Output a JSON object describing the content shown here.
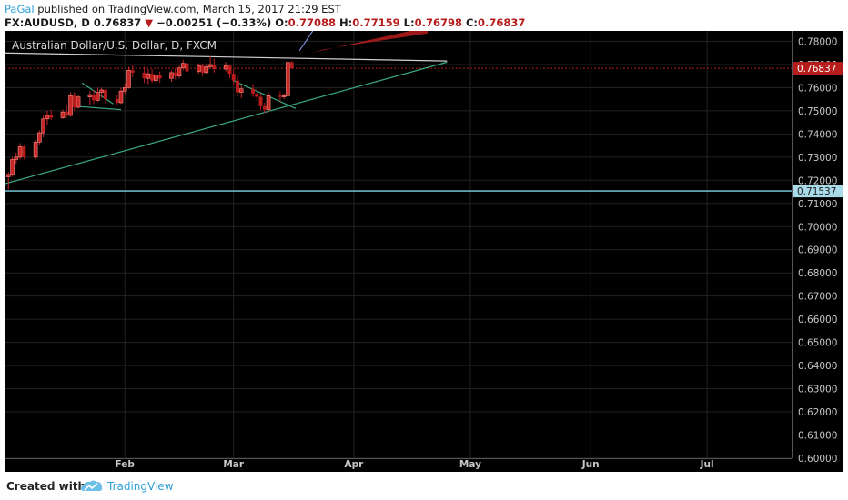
{
  "header": {
    "author": "PaGal",
    "published_text": "published on TradingView.com, March 15, 2017 21:29 EST",
    "symbol": "FX:AUDUSD, D",
    "last": "0.76837",
    "change_arrow": "▼",
    "change": "−0.00251 (−0.33%)",
    "open_label": "O:",
    "open": "0.77088",
    "high_label": "H:",
    "high": "0.77159",
    "low_label": "L:",
    "low": "0.76798",
    "close_label": "C:",
    "close": "0.76837"
  },
  "footer": {
    "created_with": "Created with",
    "brand": "TradingView",
    "logo_icon": "tradingview-cloud-icon"
  },
  "colors": {
    "background": "#000000",
    "grid": "#222222",
    "up_candle": "#c62828",
    "down_candle": "#b71c1c",
    "trend_up": "#3aa881",
    "horizontal_line": "#7fd3e5",
    "resistance": "#d0d0d0",
    "price_tag": "#b71c1c",
    "level_tag": "#a9dce8",
    "axis_text": "#c8c8c8",
    "link_blue": "#2e9fd8"
  },
  "chart_data": {
    "type": "candlestick",
    "title": "Australian Dollar/U.S. Dollar, D, FXCM",
    "y_range": [
      0.6,
      0.7845
    ],
    "y_ticks": [
      "0.78000",
      "0.77000",
      "0.76000",
      "0.75000",
      "0.74000",
      "0.73000",
      "0.72000",
      "0.71000",
      "0.70000",
      "0.69000",
      "0.68000",
      "0.67000",
      "0.66000",
      "0.65000",
      "0.64000",
      "0.63000",
      "0.62000",
      "0.61000",
      "0.60000"
    ],
    "x_ticks": [
      {
        "label": "Feb",
        "date": "2017-02-01"
      },
      {
        "label": "Mar",
        "date": "2017-03-01"
      },
      {
        "label": "Apr",
        "date": "2017-04-01"
      },
      {
        "label": "May",
        "date": "2017-05-01"
      },
      {
        "label": "Jun",
        "date": "2017-06-01"
      },
      {
        "label": "Jul",
        "date": "2017-07-01"
      }
    ],
    "x_range": [
      "2017-01-01",
      "2017-07-23"
    ],
    "grid": true,
    "last_price": "0.76837",
    "horizontal_level": "0.71537",
    "candles": [
      {
        "date": "2017-01-02",
        "o": 0.7215,
        "h": 0.7235,
        "l": 0.716,
        "c": 0.7225
      },
      {
        "date": "2017-01-03",
        "o": 0.7225,
        "h": 0.73,
        "l": 0.7215,
        "c": 0.729
      },
      {
        "date": "2017-01-04",
        "o": 0.729,
        "h": 0.732,
        "l": 0.727,
        "c": 0.73
      },
      {
        "date": "2017-01-05",
        "o": 0.73,
        "h": 0.736,
        "l": 0.729,
        "c": 0.7345
      },
      {
        "date": "2017-01-06",
        "o": 0.7345,
        "h": 0.735,
        "l": 0.729,
        "c": 0.73
      },
      {
        "date": "2017-01-09",
        "o": 0.73,
        "h": 0.7375,
        "l": 0.729,
        "c": 0.7365
      },
      {
        "date": "2017-01-10",
        "o": 0.7365,
        "h": 0.7415,
        "l": 0.7355,
        "c": 0.7405
      },
      {
        "date": "2017-01-11",
        "o": 0.7405,
        "h": 0.748,
        "l": 0.7385,
        "c": 0.7465
      },
      {
        "date": "2017-01-12",
        "o": 0.7465,
        "h": 0.75,
        "l": 0.744,
        "c": 0.748
      },
      {
        "date": "2017-01-13",
        "o": 0.748,
        "h": 0.7505,
        "l": 0.746,
        "c": 0.747
      },
      {
        "date": "2017-01-16",
        "o": 0.747,
        "h": 0.7505,
        "l": 0.7465,
        "c": 0.7495
      },
      {
        "date": "2017-01-17",
        "o": 0.7495,
        "h": 0.7525,
        "l": 0.747,
        "c": 0.748
      },
      {
        "date": "2017-01-18",
        "o": 0.748,
        "h": 0.758,
        "l": 0.7475,
        "c": 0.7565
      },
      {
        "date": "2017-01-19",
        "o": 0.7565,
        "h": 0.758,
        "l": 0.75,
        "c": 0.7515
      },
      {
        "date": "2017-01-20",
        "o": 0.7515,
        "h": 0.757,
        "l": 0.751,
        "c": 0.756
      },
      {
        "date": "2017-01-23",
        "o": 0.756,
        "h": 0.7585,
        "l": 0.7525,
        "c": 0.757
      },
      {
        "date": "2017-01-24",
        "o": 0.757,
        "h": 0.759,
        "l": 0.753,
        "c": 0.7545
      },
      {
        "date": "2017-01-25",
        "o": 0.7545,
        "h": 0.76,
        "l": 0.754,
        "c": 0.758
      },
      {
        "date": "2017-01-26",
        "o": 0.758,
        "h": 0.76,
        "l": 0.7555,
        "c": 0.759
      },
      {
        "date": "2017-01-27",
        "o": 0.759,
        "h": 0.7595,
        "l": 0.753,
        "c": 0.755
      },
      {
        "date": "2017-01-30",
        "o": 0.755,
        "h": 0.757,
        "l": 0.7525,
        "c": 0.7535
      },
      {
        "date": "2017-01-31",
        "o": 0.7535,
        "h": 0.76,
        "l": 0.753,
        "c": 0.7585
      },
      {
        "date": "2017-02-01",
        "o": 0.7585,
        "h": 0.762,
        "l": 0.757,
        "c": 0.76
      },
      {
        "date": "2017-02-02",
        "o": 0.76,
        "h": 0.769,
        "l": 0.7595,
        "c": 0.7675
      },
      {
        "date": "2017-02-03",
        "o": 0.7675,
        "h": 0.77,
        "l": 0.7645,
        "c": 0.7665
      },
      {
        "date": "2017-02-06",
        "o": 0.7665,
        "h": 0.769,
        "l": 0.762,
        "c": 0.764
      },
      {
        "date": "2017-02-07",
        "o": 0.764,
        "h": 0.768,
        "l": 0.7615,
        "c": 0.766
      },
      {
        "date": "2017-02-08",
        "o": 0.766,
        "h": 0.768,
        "l": 0.762,
        "c": 0.763
      },
      {
        "date": "2017-02-09",
        "o": 0.763,
        "h": 0.7665,
        "l": 0.762,
        "c": 0.7655
      },
      {
        "date": "2017-02-10",
        "o": 0.7655,
        "h": 0.767,
        "l": 0.762,
        "c": 0.764
      },
      {
        "date": "2017-02-13",
        "o": 0.764,
        "h": 0.7675,
        "l": 0.7625,
        "c": 0.7665
      },
      {
        "date": "2017-02-14",
        "o": 0.7665,
        "h": 0.7685,
        "l": 0.7635,
        "c": 0.765
      },
      {
        "date": "2017-02-15",
        "o": 0.765,
        "h": 0.7695,
        "l": 0.764,
        "c": 0.7685
      },
      {
        "date": "2017-02-16",
        "o": 0.7685,
        "h": 0.772,
        "l": 0.7675,
        "c": 0.7705
      },
      {
        "date": "2017-02-17",
        "o": 0.7705,
        "h": 0.7715,
        "l": 0.766,
        "c": 0.767
      },
      {
        "date": "2017-02-20",
        "o": 0.767,
        "h": 0.7705,
        "l": 0.766,
        "c": 0.7695
      },
      {
        "date": "2017-02-21",
        "o": 0.7695,
        "h": 0.7705,
        "l": 0.765,
        "c": 0.7665
      },
      {
        "date": "2017-02-22",
        "o": 0.7665,
        "h": 0.7705,
        "l": 0.766,
        "c": 0.769
      },
      {
        "date": "2017-02-23",
        "o": 0.769,
        "h": 0.7735,
        "l": 0.768,
        "c": 0.77
      },
      {
        "date": "2017-02-24",
        "o": 0.77,
        "h": 0.7725,
        "l": 0.7665,
        "c": 0.768
      },
      {
        "date": "2017-02-27",
        "o": 0.768,
        "h": 0.771,
        "l": 0.767,
        "c": 0.7695
      },
      {
        "date": "2017-02-28",
        "o": 0.7695,
        "h": 0.77,
        "l": 0.764,
        "c": 0.766
      },
      {
        "date": "2017-03-01",
        "o": 0.766,
        "h": 0.768,
        "l": 0.761,
        "c": 0.763
      },
      {
        "date": "2017-03-02",
        "o": 0.763,
        "h": 0.765,
        "l": 0.756,
        "c": 0.758
      },
      {
        "date": "2017-03-03",
        "o": 0.758,
        "h": 0.761,
        "l": 0.7555,
        "c": 0.7595
      },
      {
        "date": "2017-03-06",
        "o": 0.7595,
        "h": 0.7615,
        "l": 0.756,
        "c": 0.7575
      },
      {
        "date": "2017-03-07",
        "o": 0.7575,
        "h": 0.7595,
        "l": 0.754,
        "c": 0.756
      },
      {
        "date": "2017-03-08",
        "o": 0.756,
        "h": 0.7575,
        "l": 0.7505,
        "c": 0.752
      },
      {
        "date": "2017-03-09",
        "o": 0.752,
        "h": 0.7535,
        "l": 0.749,
        "c": 0.7505
      },
      {
        "date": "2017-03-10",
        "o": 0.7505,
        "h": 0.758,
        "l": 0.7495,
        "c": 0.7565
      },
      {
        "date": "2017-03-13",
        "o": 0.7565,
        "h": 0.7585,
        "l": 0.754,
        "c": 0.756
      },
      {
        "date": "2017-03-14",
        "o": 0.756,
        "h": 0.7575,
        "l": 0.755,
        "c": 0.7565
      },
      {
        "date": "2017-03-15",
        "o": 0.7565,
        "h": 0.773,
        "l": 0.7555,
        "c": 0.7709
      },
      {
        "date": "2017-03-16",
        "o": 0.7709,
        "h": 0.7716,
        "l": 0.768,
        "c": 0.7684
      }
    ],
    "drawings": [
      {
        "name": "uptrend-line",
        "color": "#3aa881",
        "from": {
          "date": "2016-12-31",
          "price": 0.718
        },
        "to": {
          "date": "2017-04-25",
          "price": 0.771
        }
      },
      {
        "name": "resistance-line",
        "color": "#d0d0d0",
        "from": {
          "date": "2016-12-31",
          "price": 0.775
        },
        "to": {
          "date": "2017-04-25",
          "price": 0.7715
        }
      },
      {
        "name": "flag-pole-line",
        "color": "#7b86d6",
        "from": {
          "date": "2017-03-18",
          "price": 0.776
        },
        "to": {
          "date": "2017-03-22",
          "price": 0.786
        }
      },
      {
        "name": "flag-upper-1",
        "color": "#3aa881",
        "from": {
          "date": "2017-01-21",
          "price": 0.762
        },
        "to": {
          "date": "2017-01-29",
          "price": 0.753
        }
      },
      {
        "name": "flag-lower-1",
        "color": "#3aa881",
        "from": {
          "date": "2017-01-19",
          "price": 0.752
        },
        "to": {
          "date": "2017-01-31",
          "price": 0.7505
        }
      },
      {
        "name": "flag-upper-2",
        "color": "#3aa881",
        "from": {
          "date": "2017-03-01",
          "price": 0.763
        },
        "to": {
          "date": "2017-03-17",
          "price": 0.751
        }
      },
      {
        "name": "arrow-body",
        "color": "#b71c1c",
        "from": {
          "date": "2017-03-21",
          "price": 0.775
        },
        "to": {
          "date": "2017-04-20",
          "price": 0.785
        }
      }
    ]
  }
}
